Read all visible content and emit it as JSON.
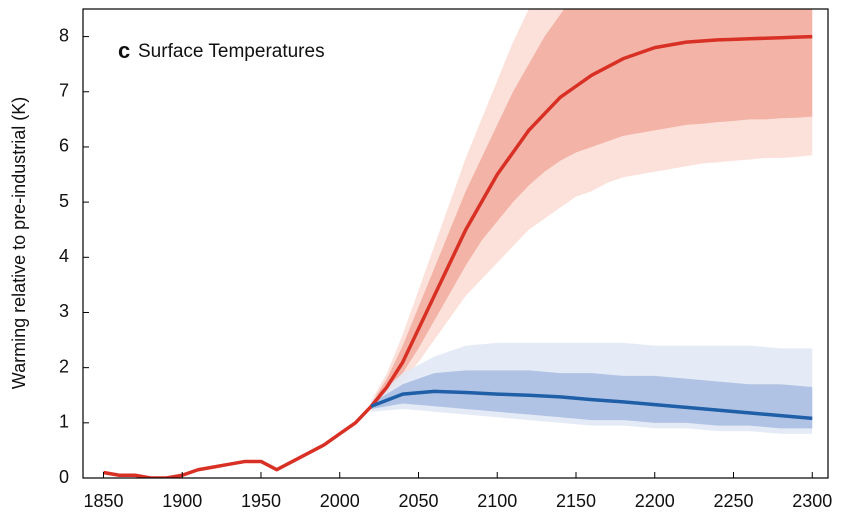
{
  "chart_data": {
    "type": "line",
    "panel_label": "c",
    "title": "Surface Temperatures",
    "y_label": "Warming relative to pre-industrial (K)",
    "xlim": [
      1837,
      2310
    ],
    "ylim": [
      0,
      8.5
    ],
    "xticks": [
      1850,
      1900,
      1950,
      2000,
      2050,
      2100,
      2150,
      2200,
      2250,
      2300
    ],
    "yticks": [
      0,
      1,
      2,
      3,
      4,
      5,
      6,
      7,
      8
    ],
    "grid": false,
    "bands": [
      {
        "color": "#fbdcd5",
        "x": [
          2020,
          2030,
          2040,
          2050,
          2060,
          2070,
          2080,
          2090,
          2100,
          2110,
          2120,
          2130,
          2140,
          2150,
          2160,
          2170,
          2180,
          2190,
          2200,
          2210,
          2220,
          2230,
          2240,
          2250,
          2260,
          2270,
          2280,
          2290,
          2300
        ],
        "upper": [
          1.4,
          1.9,
          2.6,
          3.4,
          4.2,
          5.0,
          5.8,
          6.5,
          7.2,
          7.9,
          8.5,
          9.0,
          9.4,
          9.7,
          10,
          10,
          10,
          10,
          10,
          10,
          10,
          10,
          10,
          10,
          10,
          10,
          10,
          10,
          10
        ],
        "lower": [
          1.2,
          1.45,
          1.75,
          2.1,
          2.5,
          2.9,
          3.3,
          3.6,
          3.9,
          4.2,
          4.5,
          4.7,
          4.9,
          5.1,
          5.2,
          5.35,
          5.45,
          5.5,
          5.55,
          5.6,
          5.65,
          5.7,
          5.72,
          5.75,
          5.77,
          5.8,
          5.8,
          5.82,
          5.85
        ]
      },
      {
        "color": "#f1ab9d",
        "x": [
          2020,
          2030,
          2040,
          2050,
          2060,
          2070,
          2080,
          2090,
          2100,
          2110,
          2120,
          2130,
          2140,
          2150,
          2160,
          2170,
          2180,
          2190,
          2200,
          2210,
          2220,
          2230,
          2240,
          2250,
          2260,
          2270,
          2280,
          2290,
          2300
        ],
        "upper": [
          1.35,
          1.8,
          2.4,
          3.1,
          3.8,
          4.5,
          5.2,
          5.8,
          6.4,
          7.0,
          7.5,
          8.0,
          8.4,
          8.8,
          9.1,
          9.3,
          9.5,
          9.6,
          9.7,
          9.8,
          9.8,
          9.8,
          9.8,
          9.8,
          9.8,
          9.8,
          9.8,
          9.8,
          9.8
        ],
        "lower": [
          1.25,
          1.55,
          1.9,
          2.35,
          2.85,
          3.35,
          3.85,
          4.3,
          4.65,
          5.0,
          5.3,
          5.55,
          5.75,
          5.9,
          6.0,
          6.1,
          6.2,
          6.25,
          6.3,
          6.35,
          6.4,
          6.42,
          6.45,
          6.47,
          6.5,
          6.5,
          6.52,
          6.53,
          6.55
        ]
      },
      {
        "color": "#e1e8f4",
        "x": [
          2020,
          2040,
          2060,
          2080,
          2100,
          2120,
          2140,
          2160,
          2180,
          2200,
          2220,
          2240,
          2260,
          2280,
          2300
        ],
        "upper": [
          1.4,
          1.9,
          2.2,
          2.4,
          2.45,
          2.45,
          2.45,
          2.45,
          2.45,
          2.4,
          2.4,
          2.4,
          2.4,
          2.35,
          2.35
        ],
        "lower": [
          1.2,
          1.25,
          1.2,
          1.15,
          1.1,
          1.05,
          1.0,
          0.95,
          0.95,
          0.9,
          0.9,
          0.85,
          0.85,
          0.8,
          0.8
        ]
      },
      {
        "color": "#a8bce0",
        "x": [
          2020,
          2040,
          2060,
          2080,
          2100,
          2120,
          2140,
          2160,
          2180,
          2200,
          2220,
          2240,
          2260,
          2280,
          2300
        ],
        "upper": [
          1.35,
          1.7,
          1.9,
          1.95,
          1.95,
          1.95,
          1.9,
          1.9,
          1.85,
          1.85,
          1.8,
          1.75,
          1.7,
          1.7,
          1.65
        ],
        "lower": [
          1.25,
          1.35,
          1.3,
          1.25,
          1.2,
          1.15,
          1.1,
          1.05,
          1.05,
          1.0,
          1.0,
          0.95,
          0.95,
          0.9,
          0.9
        ]
      }
    ],
    "series": [
      {
        "color": "#d93025",
        "x": [
          1850,
          1860,
          1870,
          1880,
          1890,
          1900,
          1910,
          1920,
          1930,
          1940,
          1950,
          1960,
          1970,
          1980,
          1990,
          2000,
          2010,
          2020,
          2030,
          2040,
          2050,
          2060,
          2070,
          2080,
          2090,
          2100,
          2110,
          2120,
          2130,
          2140,
          2150,
          2160,
          2170,
          2180,
          2190,
          2200,
          2210,
          2220,
          2230,
          2240,
          2250,
          2260,
          2270,
          2280,
          2290,
          2300
        ],
        "values": [
          0.1,
          0.05,
          0.05,
          0.0,
          0.0,
          0.05,
          0.15,
          0.2,
          0.25,
          0.3,
          0.3,
          0.15,
          0.3,
          0.45,
          0.6,
          0.8,
          1.0,
          1.3,
          1.65,
          2.1,
          2.7,
          3.3,
          3.9,
          4.5,
          5.0,
          5.5,
          5.9,
          6.3,
          6.6,
          6.9,
          7.1,
          7.3,
          7.45,
          7.6,
          7.7,
          7.8,
          7.85,
          7.9,
          7.92,
          7.94,
          7.95,
          7.96,
          7.97,
          7.98,
          7.99,
          8.0
        ]
      },
      {
        "color": "#1f5fa8",
        "x": [
          2020,
          2040,
          2060,
          2080,
          2100,
          2120,
          2140,
          2160,
          2180,
          2200,
          2220,
          2240,
          2260,
          2280,
          2300
        ],
        "values": [
          1.3,
          1.52,
          1.57,
          1.55,
          1.52,
          1.5,
          1.47,
          1.42,
          1.38,
          1.33,
          1.28,
          1.23,
          1.18,
          1.13,
          1.08
        ]
      }
    ]
  }
}
